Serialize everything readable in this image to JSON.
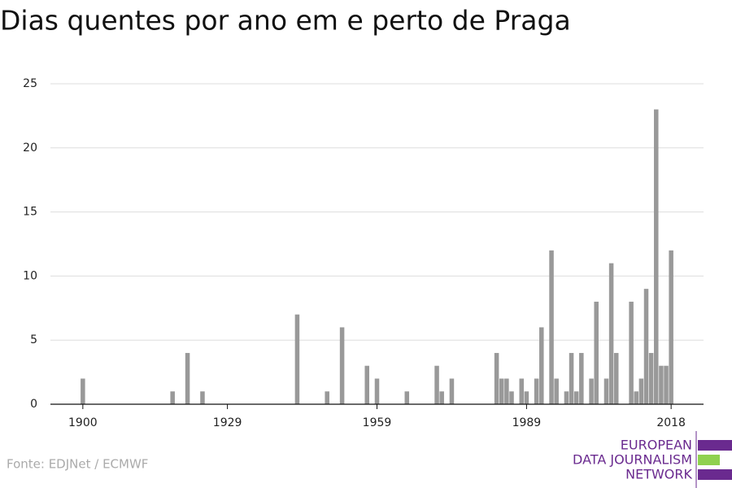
{
  "chart_data": {
    "type": "bar",
    "title": "Dias quentes por ano em e perto de Praga",
    "x": [
      1900,
      1918,
      1921,
      1924,
      1943,
      1949,
      1952,
      1957,
      1959,
      1965,
      1971,
      1972,
      1974,
      1983,
      1984,
      1985,
      1986,
      1988,
      1989,
      1991,
      1992,
      1994,
      1995,
      1997,
      1998,
      1999,
      2000,
      2002,
      2003,
      2005,
      2006,
      2007,
      2010,
      2011,
      2012,
      2013,
      2014,
      2015,
      2016,
      2017,
      2018
    ],
    "values": [
      2,
      1,
      4,
      1,
      7,
      1,
      6,
      3,
      2,
      1,
      3,
      1,
      2,
      4,
      2,
      2,
      1,
      2,
      1,
      2,
      6,
      12,
      2,
      1,
      4,
      1,
      4,
      2,
      8,
      2,
      11,
      4,
      8,
      1,
      2,
      9,
      4,
      23,
      3,
      3,
      12
    ],
    "color": "#999999",
    "xlim": [
      1893.5,
      2024.5
    ],
    "xticks": [
      1900,
      1929,
      1959,
      1989,
      2018
    ],
    "ylim": [
      0,
      25
    ],
    "yticks": [
      0,
      5,
      10,
      15,
      20,
      25
    ],
    "grid": true,
    "source": "Fonte: EDJNet / ECMWF",
    "logo": [
      "EUROPEAN",
      "DATA JOURNALISM",
      "NETWORK"
    ]
  }
}
